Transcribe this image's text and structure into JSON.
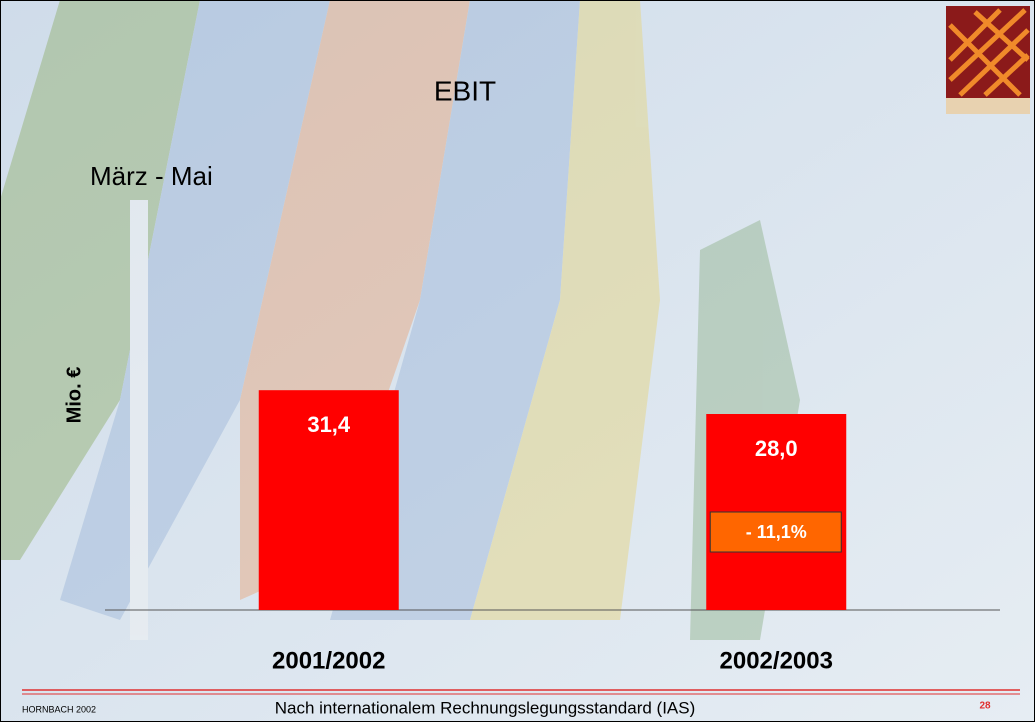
{
  "chart_data": {
    "type": "bar",
    "title": "EBIT",
    "subtitle": "März - Mai",
    "y_label": "Mio. €",
    "categories": [
      "2001/2002",
      "2002/2003"
    ],
    "values": [
      31.4,
      28.0
    ],
    "value_labels": [
      "31,4",
      "28,0"
    ],
    "color": "#ff0000",
    "ylim": [
      0,
      40
    ],
    "annotation": "- 11,1%"
  },
  "footer": {
    "company": "HORNBACH 2002",
    "note": "Nach internationalem Rechnungslegungsstandard (IAS)",
    "page": "28"
  }
}
